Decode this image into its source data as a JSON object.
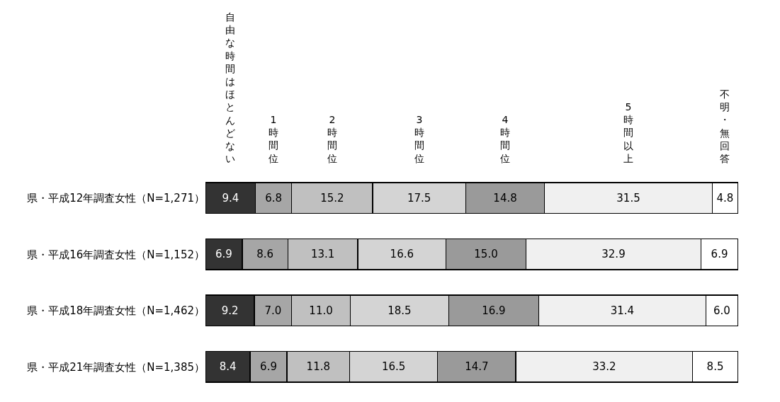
{
  "chart_data": {
    "type": "bar",
    "orientation": "horizontal",
    "stacked": true,
    "data_labels": true,
    "legend": false,
    "tick_labels": "y",
    "categories": [
      "県・平成12年調査女性（N=1,271）",
      "県・平成16年調査女性（N=1,152）",
      "県・平成18年調査女性（N=1,462）",
      "県・平成21年調査女性（N=1,385）"
    ],
    "series": [
      {
        "name": "自由な時間はほとんどない",
        "color": "#333333",
        "values": [
          9.4,
          6.9,
          9.2,
          8.4
        ]
      },
      {
        "name": "1時間位",
        "color": "#a6a6a6",
        "values": [
          6.8,
          8.6,
          7.0,
          6.9
        ],
        "value_labels": [
          "6.8",
          "8.6",
          "7.0",
          "6.9"
        ]
      },
      {
        "name": "2時間位",
        "color": "#c0c0c0",
        "values": [
          15.2,
          13.1,
          11.0,
          11.8
        ],
        "value_labels": [
          "15.2",
          "13.1",
          "11.0",
          "11.8"
        ]
      },
      {
        "name": "3時間位",
        "color": "#d4d4d4",
        "values": [
          17.5,
          16.6,
          18.5,
          16.5
        ]
      },
      {
        "name": "4時間位",
        "color": "#9a9a9a",
        "values": [
          14.8,
          15.0,
          16.9,
          14.7
        ],
        "value_labels": [
          "14.8",
          "15.0",
          "16.9",
          "14.7"
        ]
      },
      {
        "name": "5時間以上",
        "color": "#f0f0f0",
        "values": [
          31.5,
          32.9,
          31.4,
          33.2
        ]
      },
      {
        "name": "不明・無回答",
        "color": "#ffffff",
        "values": [
          4.8,
          6.9,
          6.0,
          8.5
        ],
        "value_labels": [
          "4.8",
          "6.9",
          "6.0",
          "8.5"
        ]
      }
    ]
  }
}
